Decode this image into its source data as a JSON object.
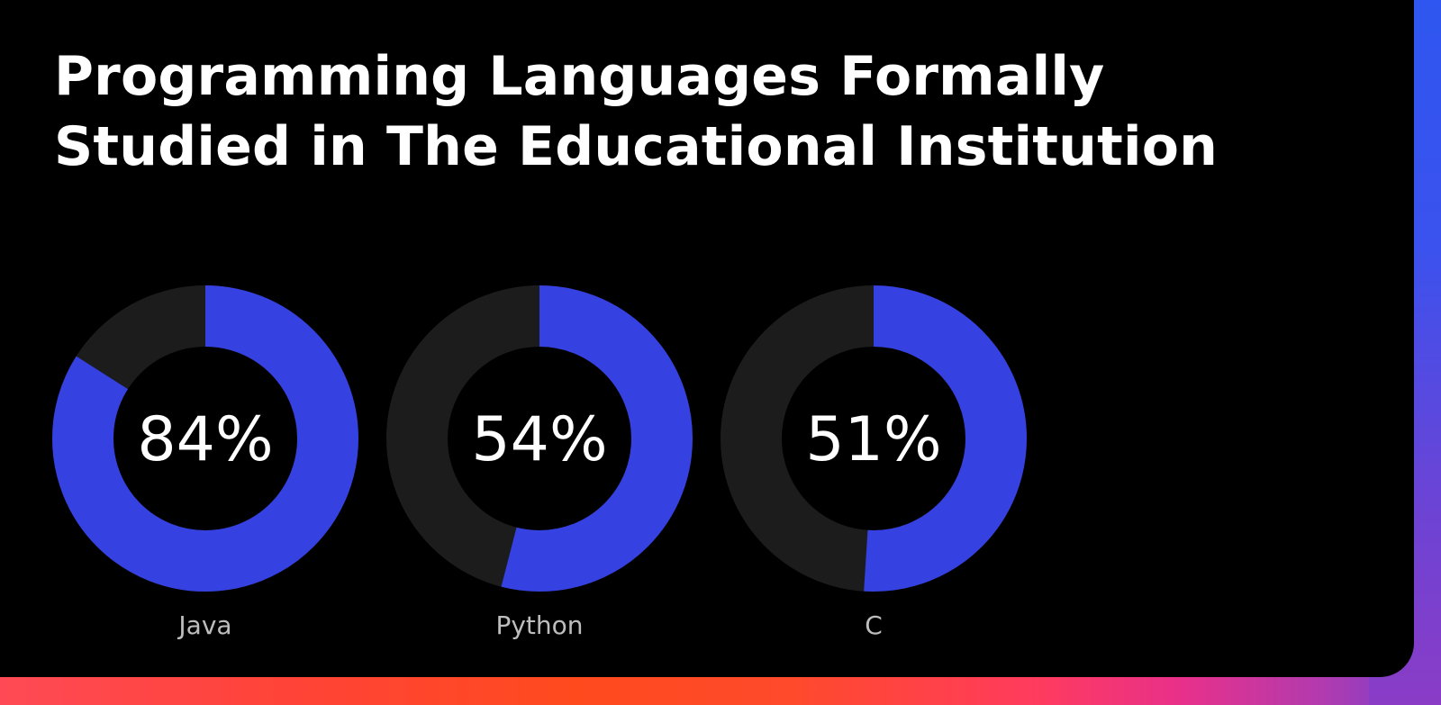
{
  "colors": {
    "filled": "#3541e0",
    "remaining": "#1c1c1c",
    "background": "#000000"
  },
  "chart_data": {
    "type": "donut",
    "title": "Programming Languages Formally Studied in The Educational Institution",
    "title_lines": [
      "Programming Languages Formally",
      "Studied in The Educational Institution"
    ],
    "categories": [
      "Java",
      "Python",
      "C"
    ],
    "values": [
      84,
      54,
      51
    ],
    "value_labels": [
      "84%",
      "54%",
      "51%"
    ],
    "unit": "%",
    "max": 100
  }
}
